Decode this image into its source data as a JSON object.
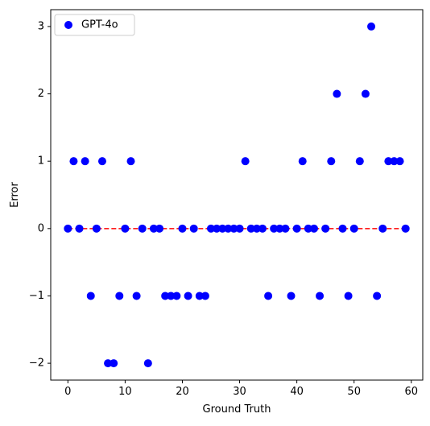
{
  "chart_data": {
    "type": "scatter",
    "title": "",
    "xlabel": "Ground Truth",
    "ylabel": "Error",
    "xlim": [
      -3,
      62
    ],
    "ylim": [
      -2.25,
      3.25
    ],
    "xticks": [
      0,
      10,
      20,
      30,
      40,
      50,
      60
    ],
    "yticks": [
      -2,
      -1,
      0,
      1,
      2,
      3
    ],
    "xtick_labels": [
      "0",
      "10",
      "20",
      "30",
      "40",
      "50",
      "60"
    ],
    "ytick_labels": [
      "−2",
      "−1",
      "0",
      "1",
      "2",
      "3"
    ],
    "grid": false,
    "legend_position": "top-left",
    "reference_line": {
      "y": 0,
      "x_range": [
        0,
        59
      ],
      "color": "#ff0000",
      "style": "dashed"
    },
    "series": [
      {
        "name": "GPT-4o",
        "color": "#0000ff",
        "x": [
          0,
          1,
          2,
          3,
          4,
          5,
          6,
          7,
          8,
          9,
          10,
          11,
          12,
          13,
          14,
          15,
          16,
          17,
          18,
          19,
          20,
          21,
          22,
          23,
          24,
          25,
          26,
          27,
          28,
          29,
          30,
          31,
          32,
          33,
          34,
          35,
          36,
          37,
          38,
          39,
          40,
          41,
          42,
          43,
          44,
          45,
          46,
          47,
          48,
          49,
          50,
          51,
          52,
          53,
          54,
          55,
          56,
          57,
          58,
          59
        ],
        "y": [
          0,
          1,
          0,
          1,
          -1,
          0,
          1,
          -2,
          -2,
          -1,
          0,
          1,
          -1,
          0,
          -2,
          0,
          0,
          -1,
          -1,
          -1,
          0,
          -1,
          0,
          -1,
          -1,
          0,
          0,
          0,
          0,
          0,
          0,
          1,
          0,
          0,
          0,
          -1,
          0,
          0,
          0,
          -1,
          0,
          1,
          0,
          0,
          -1,
          0,
          1,
          2,
          0,
          -1,
          0,
          1,
          2,
          3,
          -1,
          0,
          1,
          1,
          1,
          0
        ]
      }
    ]
  }
}
